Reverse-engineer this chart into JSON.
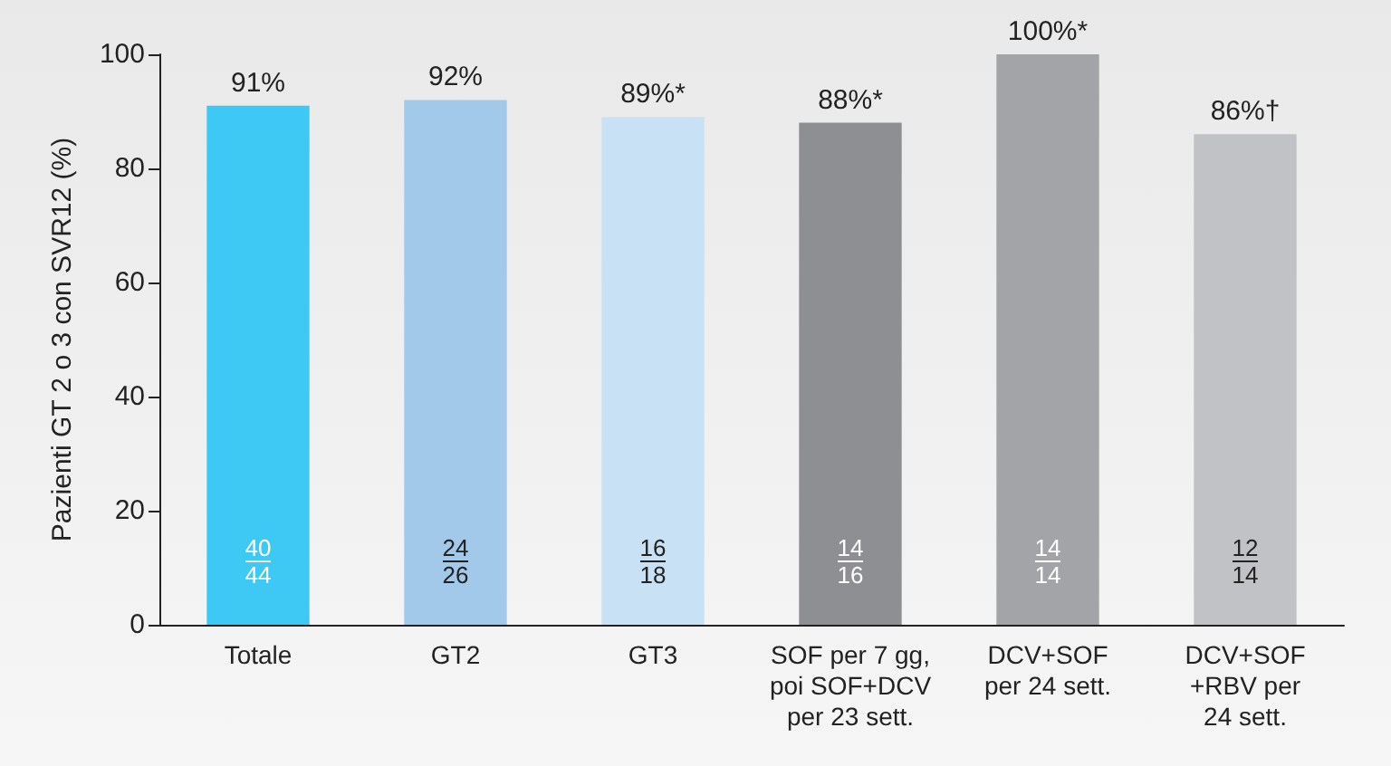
{
  "chart_data": {
    "type": "bar",
    "ylabel": "Pazienti GT 2 o 3 con SVR12 (%)",
    "categories": [
      "Totale",
      "GT2",
      "GT3",
      "SOF per 7 gg,\npoi SOF+DCV\nper 23 sett.",
      "DCV+SOF\nper 24 sett.",
      "DCV+SOF\n+RBV per\n24 sett."
    ],
    "values": [
      91,
      92,
      89,
      88,
      100,
      86
    ],
    "colors": [
      "#3ec8f4",
      "#a2c8ea",
      "#c8e1f5",
      "#8e8f92",
      "#a3a4a7",
      "#c1c2c5"
    ],
    "value_labels": [
      "91%",
      "92%",
      "89%*",
      "88%*",
      "100%*",
      "86%†"
    ],
    "annotations": [
      "40\n44",
      "24\n26",
      "16\n18",
      "14\n16",
      "14\n14",
      "12\n14"
    ],
    "ylim": [
      0,
      100
    ],
    "yticks": [
      0,
      20,
      40,
      60,
      80,
      100
    ],
    "grid": false
  }
}
